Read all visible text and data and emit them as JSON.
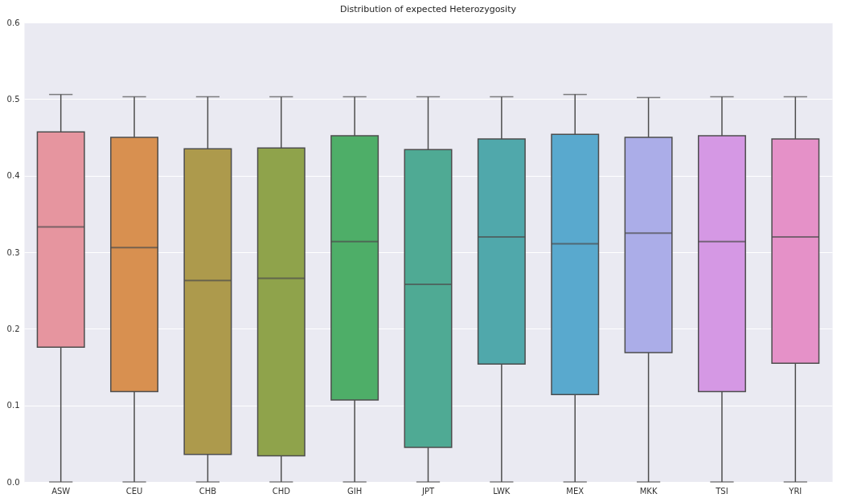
{
  "chart_data": {
    "type": "box",
    "title": "Distribution of expected Heterozygosity",
    "categories": [
      "ASW",
      "CEU",
      "CHB",
      "CHD",
      "GIH",
      "JPT",
      "LWK",
      "MEX",
      "MKK",
      "TSI",
      "YRI"
    ],
    "boxes": [
      {
        "low": 0.0,
        "q1": 0.176,
        "median": 0.333,
        "q3": 0.457,
        "high": 0.506
      },
      {
        "low": 0.0,
        "q1": 0.118,
        "median": 0.306,
        "q3": 0.45,
        "high": 0.503
      },
      {
        "low": 0.0,
        "q1": 0.036,
        "median": 0.263,
        "q3": 0.435,
        "high": 0.503
      },
      {
        "low": 0.0,
        "q1": 0.034,
        "median": 0.266,
        "q3": 0.436,
        "high": 0.503
      },
      {
        "low": 0.0,
        "q1": 0.107,
        "median": 0.314,
        "q3": 0.452,
        "high": 0.503
      },
      {
        "low": 0.0,
        "q1": 0.045,
        "median": 0.258,
        "q3": 0.434,
        "high": 0.503
      },
      {
        "low": 0.0,
        "q1": 0.154,
        "median": 0.32,
        "q3": 0.448,
        "high": 0.503
      },
      {
        "low": 0.0,
        "q1": 0.114,
        "median": 0.311,
        "q3": 0.454,
        "high": 0.506
      },
      {
        "low": 0.0,
        "q1": 0.169,
        "median": 0.325,
        "q3": 0.45,
        "high": 0.502
      },
      {
        "low": 0.0,
        "q1": 0.118,
        "median": 0.314,
        "q3": 0.452,
        "high": 0.503
      },
      {
        "low": 0.0,
        "q1": 0.155,
        "median": 0.32,
        "q3": 0.448,
        "high": 0.503
      }
    ],
    "colors": [
      "#e6959f",
      "#d89050",
      "#ad9a4c",
      "#8fa34b",
      "#4eae68",
      "#4faa94",
      "#50a8ab",
      "#59a9ce",
      "#abade8",
      "#d598e4",
      "#e591c8"
    ],
    "ylim": [
      0.0,
      0.6
    ],
    "yticks": [
      {
        "value": 0.0,
        "label": "0.0"
      },
      {
        "value": 0.1,
        "label": "0.1"
      },
      {
        "value": 0.2,
        "label": "0.2"
      },
      {
        "value": 0.3,
        "label": "0.3"
      },
      {
        "value": 0.4,
        "label": "0.4"
      },
      {
        "value": 0.5,
        "label": "0.5"
      },
      {
        "value": 0.6,
        "label": "0.6"
      }
    ],
    "grid": "y"
  }
}
